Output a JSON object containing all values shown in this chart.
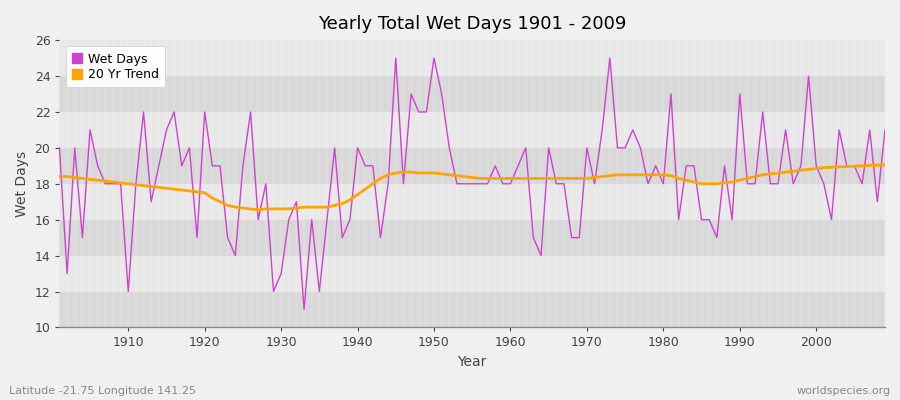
{
  "title": "Yearly Total Wet Days 1901 - 2009",
  "xlabel": "Year",
  "ylabel": "Wet Days",
  "ylim": [
    10,
    26
  ],
  "xlim": [
    1901,
    2009
  ],
  "yticks": [
    10,
    12,
    14,
    16,
    18,
    20,
    22,
    24,
    26
  ],
  "xticks": [
    1910,
    1920,
    1930,
    1940,
    1950,
    1960,
    1970,
    1980,
    1990,
    2000
  ],
  "bg_color": "#f0f0f0",
  "band_light": "#e8e8e8",
  "band_dark": "#d8d8d8",
  "wet_days_color": "#cc44cc",
  "trend_color": "#ffa500",
  "footer_left": "Latitude -21.75 Longitude 141.25",
  "footer_right": "worldspecies.org",
  "wet_days": {
    "1901": 20,
    "1902": 13,
    "1903": 20,
    "1904": 15,
    "1905": 21,
    "1906": 19,
    "1907": 18,
    "1908": 18,
    "1909": 18,
    "1910": 12,
    "1911": 18,
    "1912": 22,
    "1913": 17,
    "1914": 19,
    "1915": 21,
    "1916": 22,
    "1917": 19,
    "1918": 20,
    "1919": 15,
    "1920": 22,
    "1921": 19,
    "1922": 19,
    "1923": 15,
    "1924": 14,
    "1925": 19,
    "1926": 22,
    "1927": 16,
    "1928": 18,
    "1929": 12,
    "1930": 13,
    "1931": 16,
    "1932": 17,
    "1933": 11,
    "1934": 16,
    "1935": 12,
    "1936": 16,
    "1937": 20,
    "1938": 15,
    "1939": 16,
    "1940": 20,
    "1941": 19,
    "1942": 19,
    "1943": 15,
    "1944": 18,
    "1945": 25,
    "1946": 18,
    "1947": 23,
    "1948": 22,
    "1949": 22,
    "1950": 25,
    "1951": 23,
    "1952": 20,
    "1953": 18,
    "1954": 18,
    "1955": 18,
    "1956": 18,
    "1957": 18,
    "1958": 19,
    "1959": 18,
    "1960": 18,
    "1961": 19,
    "1962": 20,
    "1963": 15,
    "1964": 14,
    "1965": 20,
    "1966": 18,
    "1967": 18,
    "1968": 15,
    "1969": 15,
    "1970": 20,
    "1971": 18,
    "1972": 21,
    "1973": 25,
    "1974": 20,
    "1975": 20,
    "1976": 21,
    "1977": 20,
    "1978": 18,
    "1979": 19,
    "1980": 18,
    "1981": 23,
    "1982": 16,
    "1983": 19,
    "1984": 19,
    "1985": 16,
    "1986": 16,
    "1987": 15,
    "1988": 19,
    "1989": 16,
    "1990": 23,
    "1991": 18,
    "1992": 18,
    "1993": 22,
    "1994": 18,
    "1995": 18,
    "1996": 21,
    "1997": 18,
    "1998": 19,
    "1999": 24,
    "2000": 19,
    "2001": 18,
    "2002": 16,
    "2003": 21,
    "2004": 19,
    "2005": 19,
    "2006": 18,
    "2007": 21,
    "2008": 17,
    "2009": 21
  },
  "trend_smooth": [
    [
      1901,
      18.4
    ],
    [
      1902,
      18.4
    ],
    [
      1903,
      18.35
    ],
    [
      1904,
      18.3
    ],
    [
      1905,
      18.25
    ],
    [
      1906,
      18.2
    ],
    [
      1907,
      18.15
    ],
    [
      1908,
      18.1
    ],
    [
      1909,
      18.05
    ],
    [
      1910,
      18.0
    ],
    [
      1911,
      17.95
    ],
    [
      1912,
      17.9
    ],
    [
      1913,
      17.85
    ],
    [
      1914,
      17.8
    ],
    [
      1915,
      17.75
    ],
    [
      1916,
      17.7
    ],
    [
      1917,
      17.65
    ],
    [
      1918,
      17.6
    ],
    [
      1919,
      17.55
    ],
    [
      1920,
      17.5
    ],
    [
      1921,
      17.2
    ],
    [
      1922,
      17.0
    ],
    [
      1923,
      16.8
    ],
    [
      1924,
      16.7
    ],
    [
      1925,
      16.65
    ],
    [
      1926,
      16.6
    ],
    [
      1927,
      16.55
    ],
    [
      1928,
      16.6
    ],
    [
      1929,
      16.6
    ],
    [
      1930,
      16.6
    ],
    [
      1931,
      16.6
    ],
    [
      1932,
      16.65
    ],
    [
      1933,
      16.7
    ],
    [
      1934,
      16.7
    ],
    [
      1935,
      16.7
    ],
    [
      1936,
      16.7
    ],
    [
      1937,
      16.8
    ],
    [
      1938,
      16.9
    ],
    [
      1939,
      17.1
    ],
    [
      1940,
      17.4
    ],
    [
      1941,
      17.7
    ],
    [
      1942,
      18.0
    ],
    [
      1943,
      18.3
    ],
    [
      1944,
      18.5
    ],
    [
      1945,
      18.6
    ],
    [
      1946,
      18.65
    ],
    [
      1947,
      18.65
    ],
    [
      1948,
      18.6
    ],
    [
      1949,
      18.6
    ],
    [
      1950,
      18.6
    ],
    [
      1951,
      18.55
    ],
    [
      1952,
      18.5
    ],
    [
      1953,
      18.45
    ],
    [
      1954,
      18.4
    ],
    [
      1955,
      18.35
    ],
    [
      1956,
      18.3
    ],
    [
      1957,
      18.3
    ],
    [
      1958,
      18.3
    ],
    [
      1959,
      18.3
    ],
    [
      1960,
      18.3
    ],
    [
      1961,
      18.3
    ],
    [
      1962,
      18.3
    ],
    [
      1963,
      18.3
    ],
    [
      1964,
      18.3
    ],
    [
      1965,
      18.3
    ],
    [
      1966,
      18.3
    ],
    [
      1967,
      18.3
    ],
    [
      1968,
      18.3
    ],
    [
      1969,
      18.3
    ],
    [
      1970,
      18.3
    ],
    [
      1971,
      18.35
    ],
    [
      1972,
      18.4
    ],
    [
      1973,
      18.45
    ],
    [
      1974,
      18.5
    ],
    [
      1975,
      18.5
    ],
    [
      1976,
      18.5
    ],
    [
      1977,
      18.5
    ],
    [
      1978,
      18.5
    ],
    [
      1979,
      18.5
    ],
    [
      1980,
      18.5
    ],
    [
      1981,
      18.45
    ],
    [
      1982,
      18.3
    ],
    [
      1983,
      18.2
    ],
    [
      1984,
      18.1
    ],
    [
      1985,
      18.0
    ],
    [
      1986,
      18.0
    ],
    [
      1987,
      18.0
    ],
    [
      1988,
      18.05
    ],
    [
      1989,
      18.1
    ],
    [
      1990,
      18.2
    ],
    [
      1991,
      18.3
    ],
    [
      1992,
      18.4
    ],
    [
      1993,
      18.5
    ],
    [
      1994,
      18.55
    ],
    [
      1995,
      18.6
    ],
    [
      1996,
      18.65
    ],
    [
      1997,
      18.7
    ],
    [
      1998,
      18.75
    ],
    [
      1999,
      18.8
    ],
    [
      2000,
      18.85
    ],
    [
      2001,
      18.9
    ],
    [
      2002,
      18.92
    ],
    [
      2003,
      18.94
    ],
    [
      2004,
      18.96
    ],
    [
      2005,
      18.98
    ],
    [
      2006,
      19.0
    ],
    [
      2007,
      19.02
    ],
    [
      2008,
      19.04
    ],
    [
      2009,
      19.05
    ]
  ]
}
